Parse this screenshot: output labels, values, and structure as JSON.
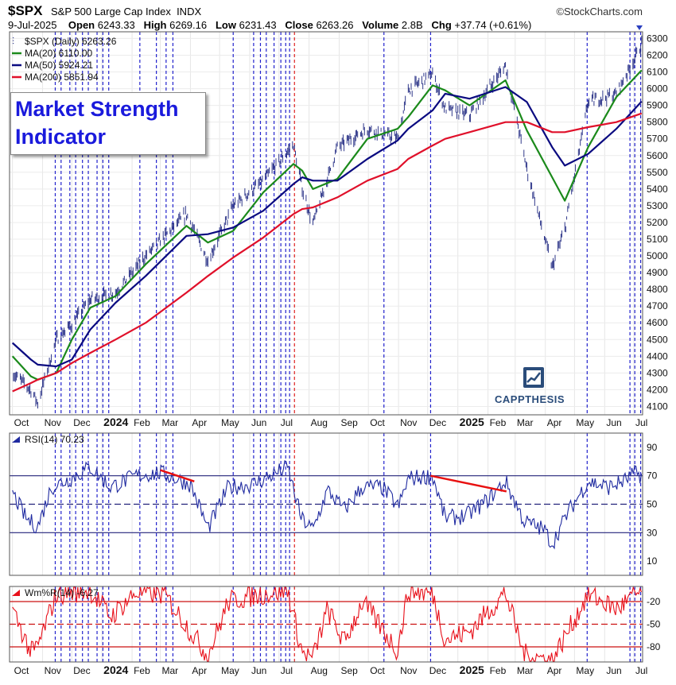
{
  "header": {
    "symbol": "$SPX",
    "name": "S&P 500 Large Cap Index",
    "exchange": "INDX",
    "brand": "©StockCharts.com",
    "date": "9-Jul-2025",
    "open_label": "Open",
    "open": "6243.33",
    "high_label": "High",
    "high": "6269.16",
    "low_label": "Low",
    "low": "6231.43",
    "close_label": "Close",
    "close": "6263.26",
    "volume_label": "Volume",
    "volume": "2.8B",
    "chg_label": "Chg",
    "chg": "+37.74 (+0.61%)"
  },
  "annotation": {
    "line1": "Market Strength",
    "line2": "Indicator"
  },
  "watermark": "CAPPTHESIS",
  "colors": {
    "price": "#1a237e",
    "ma20": "#1b8a1b",
    "ma50": "#0a0a80",
    "ma200": "#e0102a",
    "rsi": "#1f2aa0",
    "wpr": "#e8101a",
    "vline_blue": "#2222cc",
    "vline_red": "#dd2222"
  },
  "chart_data": [
    {
      "type": "line",
      "panel": "price",
      "legend": [
        {
          "label": "$SPX (Daily) 6263.26"
        },
        {
          "label": "MA(20) 6110.00"
        },
        {
          "label": "MA(50) 5924.21"
        },
        {
          "label": "MA(200) 5851.94"
        }
      ],
      "x": [
        "2023-10-01",
        "2023-10-20",
        "2023-10-27",
        "2023-11-15",
        "2023-12-01",
        "2023-12-20",
        "2024-01-15",
        "2024-02-15",
        "2024-03-28",
        "2024-04-19",
        "2024-05-15",
        "2024-06-15",
        "2024-07-16",
        "2024-07-25",
        "2024-08-05",
        "2024-08-30",
        "2024-09-30",
        "2024-10-31",
        "2024-11-11",
        "2024-12-06",
        "2024-12-19",
        "2025-01-13",
        "2025-02-19",
        "2025-03-13",
        "2025-04-08",
        "2025-04-21",
        "2025-05-15",
        "2025-06-13",
        "2025-07-09"
      ],
      "series": [
        {
          "name": "$SPX",
          "values": [
            4300,
            4200,
            4120,
            4500,
            4590,
            4740,
            4780,
            5000,
            5250,
            4970,
            5300,
            5450,
            5665,
            5400,
            5190,
            5650,
            5760,
            5700,
            5990,
            6090,
            5880,
            5840,
            6140,
            5520,
            4930,
            5160,
            5920,
            5970,
            6263
          ]
        },
        {
          "name": "MA(20)",
          "values": [
            4400,
            4280,
            4260,
            4300,
            4500,
            4690,
            4760,
            4950,
            5180,
            5080,
            5150,
            5380,
            5550,
            5510,
            5400,
            5460,
            5700,
            5760,
            5830,
            6020,
            5990,
            5900,
            6050,
            5750,
            5470,
            5330,
            5650,
            5950,
            6110
          ]
        },
        {
          "name": "MA(50)",
          "values": [
            4480,
            4380,
            4350,
            4340,
            4380,
            4560,
            4720,
            4880,
            5120,
            5130,
            5170,
            5270,
            5430,
            5470,
            5450,
            5450,
            5580,
            5690,
            5760,
            5870,
            5970,
            5940,
            6010,
            5920,
            5650,
            5540,
            5610,
            5760,
            5924
          ]
        },
        {
          "name": "MA(200)",
          "values": [
            4190,
            4240,
            4260,
            4300,
            4360,
            4420,
            4500,
            4600,
            4780,
            4880,
            4990,
            5110,
            5250,
            5280,
            5290,
            5350,
            5450,
            5520,
            5580,
            5660,
            5700,
            5740,
            5800,
            5800,
            5740,
            5740,
            5770,
            5800,
            5852
          ]
        }
      ],
      "y_ticks": [
        4100,
        4200,
        4300,
        4400,
        4500,
        4600,
        4700,
        4800,
        4900,
        5000,
        5100,
        5200,
        5300,
        5400,
        5500,
        5600,
        5700,
        5800,
        5900,
        6000,
        6100,
        6200,
        6300
      ],
      "ylim": [
        4050,
        6340
      ]
    },
    {
      "type": "line",
      "panel": "rsi",
      "legend": "RSI(14) 70.23",
      "x": [
        "2023-10-01",
        "2023-10-15",
        "2023-10-27",
        "2023-11-10",
        "2023-11-30",
        "2023-12-20",
        "2024-01-10",
        "2024-02-05",
        "2024-03-01",
        "2024-04-01",
        "2024-04-19",
        "2024-05-10",
        "2024-06-05",
        "2024-07-10",
        "2024-07-24",
        "2024-08-05",
        "2024-08-20",
        "2024-09-06",
        "2024-09-25",
        "2024-10-15",
        "2024-11-01",
        "2024-11-11",
        "2024-12-06",
        "2024-12-19",
        "2025-01-10",
        "2025-01-30",
        "2025-02-19",
        "2025-03-10",
        "2025-03-31",
        "2025-04-08",
        "2025-04-24",
        "2025-05-15",
        "2025-06-05",
        "2025-06-20",
        "2025-07-03",
        "2025-07-09"
      ],
      "values": [
        58,
        40,
        34,
        62,
        68,
        76,
        62,
        70,
        72,
        64,
        33,
        62,
        64,
        76,
        40,
        32,
        60,
        46,
        62,
        62,
        48,
        68,
        70,
        40,
        42,
        52,
        66,
        38,
        32,
        22,
        44,
        66,
        62,
        66,
        72,
        70
      ],
      "y_ticks": [
        10,
        30,
        50,
        70,
        90
      ],
      "ylim": [
        0,
        100
      ],
      "reference_lines": [
        30,
        50,
        70
      ],
      "trendlines": [
        {
          "from": {
            "x": "2024-03-01",
            "y": 74
          },
          "to": {
            "x": "2024-04-05",
            "y": 66
          }
        },
        {
          "from": {
            "x": "2024-12-04",
            "y": 70
          },
          "to": {
            "x": "2025-02-20",
            "y": 59
          }
        }
      ]
    },
    {
      "type": "line",
      "panel": "williams",
      "legend": "Wm%R(14) -6.27",
      "x": [
        "2023-10-01",
        "2023-10-20",
        "2023-10-27",
        "2023-11-15",
        "2023-12-20",
        "2024-01-10",
        "2024-02-05",
        "2024-03-05",
        "2024-04-19",
        "2024-05-10",
        "2024-06-05",
        "2024-07-10",
        "2024-07-25",
        "2024-08-05",
        "2024-08-20",
        "2024-09-06",
        "2024-09-25",
        "2024-10-31",
        "2024-11-11",
        "2024-12-06",
        "2024-12-19",
        "2025-01-13",
        "2025-02-19",
        "2025-03-10",
        "2025-04-08",
        "2025-04-24",
        "2025-05-15",
        "2025-06-13",
        "2025-07-09"
      ],
      "values": [
        -30,
        -88,
        -80,
        -10,
        -5,
        -40,
        -8,
        -10,
        -92,
        -20,
        -12,
        -5,
        -88,
        -95,
        -30,
        -75,
        -20,
        -85,
        -5,
        -10,
        -70,
        -60,
        -8,
        -90,
        -98,
        -60,
        -10,
        -30,
        -6
      ],
      "y_ticks": [
        -20,
        -50,
        -80
      ],
      "ylim": [
        -100,
        0
      ],
      "reference_lines": [
        -20,
        -50,
        -80
      ]
    }
  ],
  "x_axis_labels": [
    {
      "label": "Oct",
      "date": "2023-10-01",
      "bold": false
    },
    {
      "label": "Nov",
      "date": "2023-11-01",
      "bold": false
    },
    {
      "label": "Dec",
      "date": "2023-12-01",
      "bold": false
    },
    {
      "label": "2024",
      "date": "2024-01-01",
      "bold": true
    },
    {
      "label": "Feb",
      "date": "2024-02-01",
      "bold": false
    },
    {
      "label": "Mar",
      "date": "2024-03-01",
      "bold": false
    },
    {
      "label": "Apr",
      "date": "2024-04-01",
      "bold": false
    },
    {
      "label": "May",
      "date": "2024-05-01",
      "bold": false
    },
    {
      "label": "Jun",
      "date": "2024-06-01",
      "bold": false
    },
    {
      "label": "Jul",
      "date": "2024-07-01",
      "bold": false
    },
    {
      "label": "Aug",
      "date": "2024-08-01",
      "bold": false
    },
    {
      "label": "Sep",
      "date": "2024-09-01",
      "bold": false
    },
    {
      "label": "Oct",
      "date": "2024-10-01",
      "bold": false
    },
    {
      "label": "Nov",
      "date": "2024-11-01",
      "bold": false
    },
    {
      "label": "Dec",
      "date": "2024-12-01",
      "bold": false
    },
    {
      "label": "2025",
      "date": "2025-01-01",
      "bold": true
    },
    {
      "label": "Feb",
      "date": "2025-02-01",
      "bold": false
    },
    {
      "label": "Mar",
      "date": "2025-03-01",
      "bold": false
    },
    {
      "label": "Apr",
      "date": "2025-04-01",
      "bold": false
    },
    {
      "label": "May",
      "date": "2025-05-01",
      "bold": false
    },
    {
      "label": "Jun",
      "date": "2025-06-01",
      "bold": false
    },
    {
      "label": "Jul",
      "date": "2025-07-01",
      "bold": false
    }
  ],
  "signal_lines": {
    "blue": [
      "2023-11-14",
      "2023-11-20",
      "2023-11-29",
      "2023-12-05",
      "2023-12-12",
      "2023-12-18",
      "2023-12-27",
      "2024-01-02",
      "2024-01-08",
      "2024-02-09",
      "2024-02-26",
      "2024-03-07",
      "2024-03-14",
      "2024-05-15",
      "2024-06-05",
      "2024-06-12",
      "2024-06-18",
      "2024-06-26",
      "2024-07-03",
      "2024-07-08",
      "2024-07-12",
      "2024-10-17",
      "2024-12-04",
      "2025-05-14",
      "2025-06-27",
      "2025-07-02",
      "2025-07-08"
    ],
    "red": [
      "2024-07-17"
    ]
  }
}
